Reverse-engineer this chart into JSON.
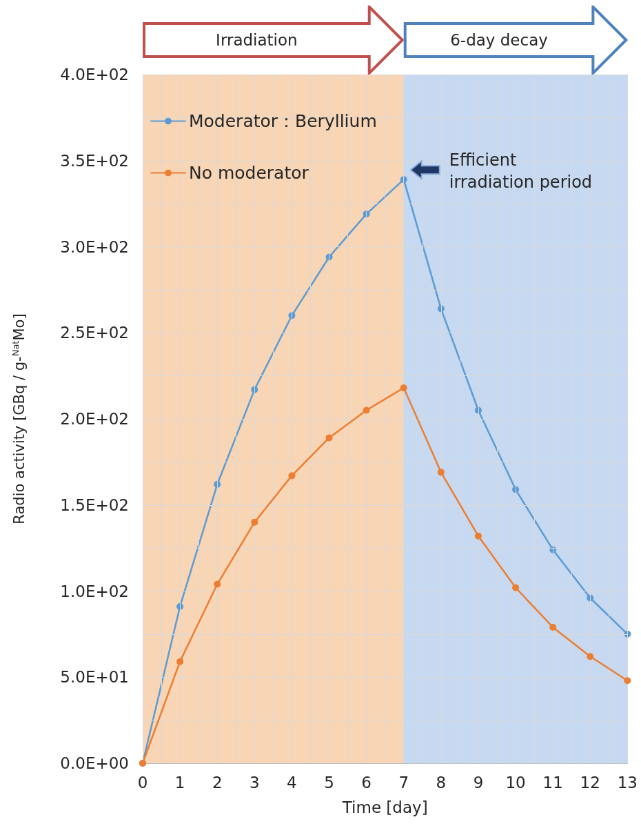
{
  "chart_data": {
    "type": "line",
    "xlabel": "Time [day]",
    "ylabel": "Radio activity [GBq / g-$^{Nat}$Mo]",
    "x": [
      0,
      1,
      2,
      3,
      4,
      5,
      6,
      7,
      8,
      9,
      10,
      11,
      12,
      13
    ],
    "series": [
      {
        "name": "Moderator：Beryllium",
        "color": "#5b9bd5",
        "values": [
          0,
          91,
          162,
          217,
          260,
          294,
          319,
          339,
          264,
          205,
          159,
          124,
          96,
          75
        ]
      },
      {
        "name": "No moderator",
        "color": "#ed7d31",
        "values": [
          0,
          59,
          104,
          140,
          167,
          189,
          205,
          218,
          169,
          132,
          102,
          79,
          62,
          48
        ]
      }
    ],
    "xlim": [
      0,
      13
    ],
    "xticks": [
      0,
      1,
      2,
      3,
      4,
      5,
      6,
      7,
      8,
      9,
      10,
      11,
      12,
      13
    ],
    "ylim": [
      0,
      400
    ],
    "yticks": [
      {
        "value": 0,
        "label": "0.0E+00"
      },
      {
        "value": 50,
        "label": "5.0E+01"
      },
      {
        "value": 100,
        "label": "1.0E+02"
      },
      {
        "value": 150,
        "label": "1.5E+02"
      },
      {
        "value": 200,
        "label": "2.0E+02"
      },
      {
        "value": 250,
        "label": "2.5E+02"
      },
      {
        "value": 300,
        "label": "3.0E+02"
      },
      {
        "value": 350,
        "label": "3.5E+02"
      },
      {
        "value": 400,
        "label": "4.0E+02"
      }
    ],
    "bands": [
      {
        "axis": "x",
        "from": 0,
        "to": 7,
        "label": "Irradiation",
        "color": "#f8d5b5"
      },
      {
        "axis": "x",
        "from": 7,
        "to": 13,
        "label": "6-day decay",
        "color": "#c6d9f0"
      }
    ],
    "annotations": [
      {
        "text": "Efficient irradiation period",
        "x": 7,
        "y": 339
      }
    ],
    "grid": true,
    "legend": "top left",
    "marker": "circle",
    "line_style": "solid"
  }
}
